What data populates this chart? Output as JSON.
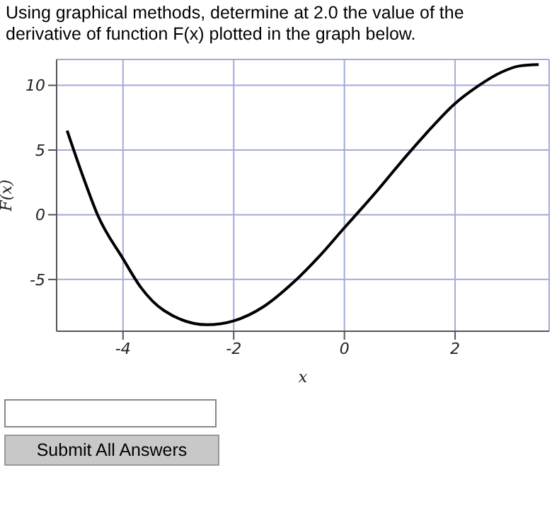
{
  "chart_data": {
    "type": "line",
    "title": "Using graphical methods, determine at 2.0 the value of the derivative of function F(x) plotted in the graph below.",
    "xlabel": "x",
    "ylabel": "F(x)",
    "x": [
      -5.01,
      -4.71,
      -4.46,
      -4.0,
      -3.68,
      -3.26,
      -2.48,
      -2.0,
      -1.46,
      -0.94,
      -0.43,
      0,
      0.21,
      0.6,
      1.11,
      1.46,
      2.0,
      2.4,
      2.83,
      3.17,
      3.51
    ],
    "series": [
      {
        "color": "#000000",
        "values": [
          6.5,
          2.8,
          0,
          -3.4,
          -5.6,
          -7.4,
          -8.5,
          -8.2,
          -7.1,
          -5.3,
          -3.1,
          -1.0,
          0,
          1.9,
          4.5,
          6.2,
          8.6,
          9.9,
          11.0,
          11.5,
          11.6
        ]
      }
    ],
    "xlim": [
      -5.2,
      3.7
    ],
    "ylim": [
      -9,
      12
    ],
    "xticks": [
      -4,
      -2,
      0,
      2
    ],
    "yticks": [
      -5,
      0,
      5,
      10
    ],
    "grid": true,
    "marker": "none",
    "line_style": "solid",
    "annotations": [
      "Submit All Answers"
    ]
  }
}
